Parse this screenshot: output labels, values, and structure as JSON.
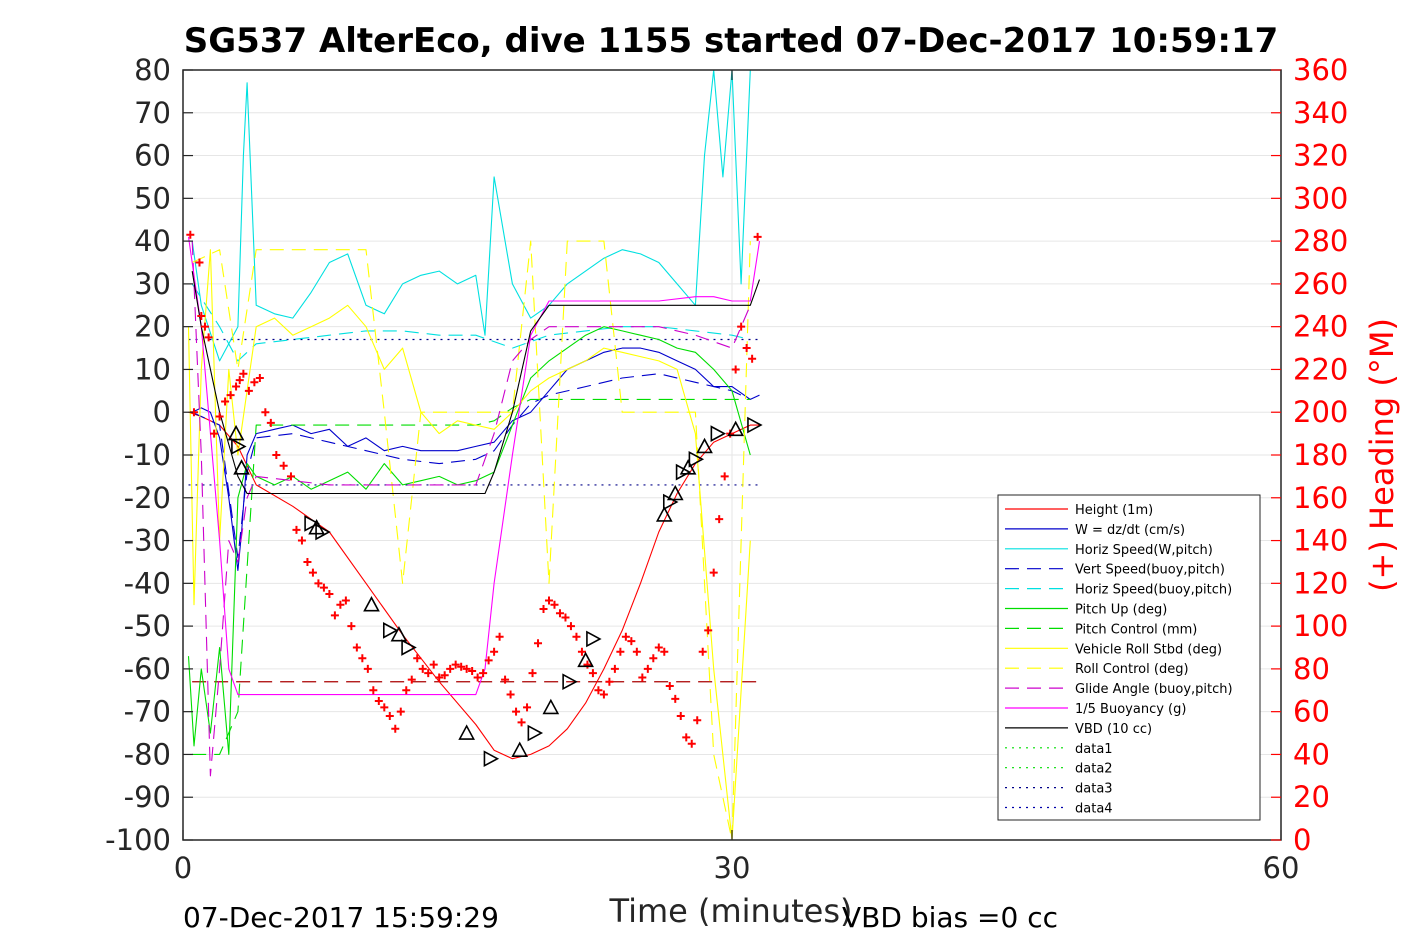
{
  "chart_data": {
    "type": "line",
    "title": "SG537 AlterEco, dive 1155 started 07-Dec-2017 10:59:17",
    "xlabel": "Time (minutes)",
    "ylabel_right": "(+) Heading (°M)",
    "xlim": [
      0,
      60
    ],
    "ylim": [
      -100,
      80
    ],
    "ylim_right": [
      0,
      360
    ],
    "xticks": [
      "0",
      "30",
      "60"
    ],
    "yticks": [
      "80",
      "70",
      "60",
      "50",
      "40",
      "30",
      "20",
      "10",
      "0",
      "-10",
      "-20",
      "-30",
      "-40",
      "-50",
      "-60",
      "-70",
      "-80",
      "-90",
      "-100"
    ],
    "yticks_right": [
      "360",
      "340",
      "320",
      "300",
      "280",
      "260",
      "240",
      "220",
      "200",
      "180",
      "160",
      "140",
      "120",
      "100",
      "80",
      "60",
      "40",
      "20",
      "0"
    ],
    "grid": true,
    "legend_position": "bottom-right",
    "footer_left": "07-Dec-2017 15:59:29",
    "footer_right": "VBD bias =0 cc",
    "series": [
      {
        "name": "Height (1m)",
        "color": "#ff0000",
        "style": "solid",
        "x": [
          0.3,
          1,
          2,
          3,
          4,
          6,
          7,
          8,
          10,
          12,
          14,
          16,
          17,
          18,
          19,
          20,
          21,
          22,
          23,
          24,
          25,
          26,
          27,
          28,
          29,
          30,
          31,
          31.5
        ],
        "y": [
          0,
          -1,
          -3,
          -8,
          -17,
          -22,
          -25,
          -28,
          -40,
          -52,
          -63,
          -73,
          -79,
          -81,
          -80,
          -78,
          -74,
          -68,
          -60,
          -51,
          -40,
          -28,
          -19,
          -12,
          -7,
          -5,
          -3,
          -3
        ]
      },
      {
        "name": "W = dz/dt (cm/s)",
        "color": "#0000cc",
        "style": "solid",
        "x": [
          0.5,
          1,
          1.5,
          2,
          2.5,
          3,
          3.2,
          3.5,
          4,
          5,
          6,
          7,
          8,
          9,
          10,
          11,
          12,
          13,
          14,
          15,
          16,
          17,
          18,
          19,
          20,
          21,
          22,
          23,
          24,
          25,
          26,
          27,
          28,
          29,
          30,
          31,
          31.5
        ],
        "y": [
          0,
          1,
          0,
          -6,
          -20,
          -37,
          -28,
          -10,
          -5,
          -4,
          -3,
          -5,
          -4,
          -8,
          -6,
          -9,
          -8,
          -9,
          -9,
          -9,
          -8,
          -7,
          -2,
          0,
          5,
          10,
          12,
          14,
          15,
          15,
          14,
          12,
          10,
          6,
          6,
          3,
          4
        ]
      },
      {
        "name": "Horiz Speed(W,pitch)",
        "color": "#00e0e0",
        "style": "solid",
        "x": [
          0.5,
          1,
          2,
          3,
          3.3,
          3.5,
          4,
          5,
          6,
          7,
          8,
          9,
          10,
          11,
          12,
          13,
          14,
          15,
          16,
          16.5,
          17,
          18,
          19,
          20,
          21,
          22,
          23,
          24,
          25,
          26,
          27,
          28,
          28.5,
          29,
          29.5,
          30,
          30.5,
          31
        ],
        "y": [
          40,
          25,
          12,
          20,
          60,
          77,
          25,
          23,
          22,
          28,
          35,
          37,
          25,
          23,
          30,
          32,
          33,
          30,
          32,
          18,
          55,
          30,
          22,
          25,
          30,
          33,
          36,
          38,
          37,
          35,
          30,
          25,
          60,
          80,
          55,
          80,
          30,
          80
        ]
      },
      {
        "name": "Vert Speed(buoy,pitch)",
        "color": "#0000cc",
        "style": "dashed",
        "x": [
          0.5,
          2,
          3,
          3.5,
          4,
          6,
          8,
          10,
          12,
          14,
          16,
          17,
          18,
          19,
          20,
          22,
          24,
          26,
          28,
          30,
          31
        ],
        "y": [
          0,
          -3,
          -34,
          -14,
          -6,
          -5,
          -7,
          -9,
          -11,
          -12,
          -11,
          -9,
          -3,
          2,
          4,
          6,
          8,
          9,
          7,
          5,
          3
        ]
      },
      {
        "name": "Horiz Speed(buoy,pitch)",
        "color": "#00e0e0",
        "style": "dashed",
        "x": [
          0.5,
          2,
          3,
          4,
          6,
          8,
          10,
          12,
          14,
          16,
          18,
          20,
          22,
          24,
          26,
          28,
          30,
          31
        ],
        "y": [
          30,
          20,
          12,
          16,
          17,
          18,
          19,
          19,
          18,
          18,
          15,
          18,
          19,
          20,
          20,
          19,
          18,
          17
        ]
      },
      {
        "name": "Pitch Up (deg)",
        "color": "#00dd00",
        "style": "solid",
        "x": [
          0.3,
          0.6,
          1,
          1.5,
          2,
          2.5,
          3,
          3.5,
          4,
          5,
          6,
          7,
          8,
          9,
          10,
          11,
          12,
          13,
          14,
          15,
          16,
          17,
          18,
          19,
          20,
          21,
          22,
          23,
          24,
          25,
          26,
          27,
          28,
          29,
          30,
          31
        ],
        "y": [
          -57,
          -78,
          -60,
          -75,
          -55,
          -80,
          -20,
          -12,
          -15,
          -17,
          -15,
          -18,
          -16,
          -14,
          -18,
          -12,
          -17,
          -16,
          -15,
          -17,
          -16,
          -14,
          -3,
          8,
          12,
          15,
          18,
          20,
          19,
          18,
          17,
          15,
          14,
          10,
          5,
          -10
        ]
      },
      {
        "name": "Pitch Control (mm)",
        "color": "#00dd00",
        "style": "dashed",
        "x": [
          0.5,
          2,
          3,
          4,
          16,
          17,
          18,
          19,
          20,
          31
        ],
        "y": [
          -80,
          -80,
          -70,
          -3,
          -3,
          -2,
          1,
          3,
          3,
          3
        ]
      },
      {
        "name": "Vehicle Roll Stbd (deg)",
        "color": "#ffff00",
        "style": "solid",
        "x": [
          0.3,
          0.6,
          1,
          1.5,
          2,
          2.5,
          3,
          4,
          5,
          6,
          7,
          8,
          9,
          10,
          11,
          12,
          13,
          14,
          15,
          16,
          17,
          18,
          19,
          20,
          21,
          22,
          23,
          24,
          25,
          26,
          27,
          28,
          29,
          30,
          31
        ],
        "y": [
          20,
          -45,
          10,
          38,
          -30,
          10,
          -10,
          20,
          22,
          18,
          20,
          22,
          25,
          20,
          10,
          15,
          0,
          -5,
          -2,
          -3,
          -4,
          0,
          5,
          8,
          10,
          12,
          15,
          14,
          13,
          12,
          10,
          -5,
          -60,
          -100,
          -30
        ]
      },
      {
        "name": "Roll Control (deg)",
        "color": "#ffff00",
        "style": "dashed",
        "x": [
          0.5,
          2,
          3,
          4,
          6,
          8,
          10,
          11,
          12,
          13,
          14,
          15,
          16,
          17,
          18,
          19,
          20,
          21,
          22,
          23,
          24,
          25,
          26,
          27,
          28,
          29,
          30,
          31
        ],
        "y": [
          35,
          38,
          10,
          38,
          38,
          38,
          38,
          0,
          -40,
          0,
          0,
          0,
          0,
          0,
          0,
          40,
          -40,
          40,
          40,
          40,
          0,
          0,
          0,
          0,
          0,
          -80,
          -100,
          40
        ]
      },
      {
        "name": "Glide Angle (buoy,pitch)",
        "color": "#cc00cc",
        "style": "dashed",
        "x": [
          0.5,
          1,
          1.5,
          2,
          2.5,
          3,
          3.5,
          4,
          6,
          8,
          10,
          12,
          14,
          16,
          17,
          18,
          19,
          20,
          22,
          24,
          26,
          28,
          30,
          31
        ],
        "y": [
          40,
          -10,
          -85,
          -60,
          -30,
          -35,
          -20,
          -15,
          -16,
          -17,
          -17,
          -17,
          -17,
          -17,
          -5,
          12,
          17,
          20,
          20,
          20,
          20,
          18,
          15,
          25
        ]
      },
      {
        "name": "1/5 Buoyancy (g)",
        "color": "#ff00ff",
        "style": "solid",
        "x": [
          0.3,
          1,
          2,
          2.5,
          3,
          3.5,
          4,
          6,
          8,
          10,
          12,
          14,
          15,
          16,
          16.5,
          17,
          18,
          19,
          20,
          22,
          24,
          26,
          28,
          29,
          30,
          31,
          31.5
        ],
        "y": [
          41,
          20,
          -30,
          -60,
          -66,
          -66,
          -66,
          -66,
          -66,
          -66,
          -66,
          -66,
          -66,
          -66,
          -60,
          -40,
          -10,
          18,
          26,
          26,
          26,
          26,
          27,
          27,
          26,
          26,
          40
        ]
      },
      {
        "name": "VBD (10 cc)",
        "color": "#000000",
        "style": "solid",
        "x": [
          0.5,
          1,
          2,
          3,
          3.5,
          4,
          6,
          8,
          10,
          12,
          14,
          15,
          16,
          16.5,
          17,
          18,
          19,
          20,
          22,
          24,
          26,
          28,
          30,
          31,
          31.5
        ],
        "y": [
          33,
          20,
          0,
          -15,
          -19,
          -19,
          -19,
          -19,
          -19,
          -19,
          -19,
          -19,
          -19,
          -19,
          -14,
          0,
          19,
          25,
          25,
          25,
          25,
          25,
          25,
          25,
          31
        ]
      },
      {
        "name": "data1",
        "color": "#00dd00",
        "style": "dotted",
        "x": [],
        "y": []
      },
      {
        "name": "data2",
        "color": "#00dd00",
        "style": "dotted",
        "x": [],
        "y": []
      },
      {
        "name": "data3",
        "color": "#000088",
        "style": "dotted",
        "x": [],
        "y": []
      },
      {
        "name": "data4",
        "color": "#0000aa",
        "style": "dotted",
        "x": [],
        "y": []
      }
    ],
    "reference_lines": [
      {
        "y": 17,
        "color": "#000088",
        "style": "dotted",
        "x": [
          0.3,
          31.5
        ]
      },
      {
        "y": -17,
        "color": "#000088",
        "style": "dotted",
        "x": [
          0.3,
          31.5
        ]
      },
      {
        "y": -63,
        "color": "#aa0000",
        "style": "dashed",
        "x": [
          0.5,
          31.5
        ]
      }
    ],
    "heading_points": {
      "axis": "right",
      "color": "#ff0000",
      "x": [
        0.4,
        0.6,
        0.9,
        1.0,
        1.2,
        1.4,
        1.7,
        2.0,
        2.3,
        2.6,
        2.9,
        3.1,
        3.3,
        3.6,
        3.9,
        4.2,
        4.5,
        4.8,
        5.1,
        5.5,
        5.9,
        6.2,
        6.5,
        6.8,
        7.1,
        7.4,
        7.7,
        8.0,
        8.3,
        8.6,
        8.9,
        9.2,
        9.5,
        9.8,
        10.1,
        10.4,
        10.7,
        11.0,
        11.3,
        11.6,
        11.9,
        12.2,
        12.5,
        12.8,
        13.1,
        13.4,
        13.7,
        14.0,
        14.3,
        14.6,
        14.9,
        15.2,
        15.5,
        15.8,
        16.1,
        16.4,
        16.7,
        17.0,
        17.3,
        17.6,
        17.9,
        18.2,
        18.5,
        18.8,
        19.1,
        19.4,
        19.7,
        20.0,
        20.3,
        20.6,
        20.9,
        21.2,
        21.5,
        21.8,
        22.1,
        22.4,
        22.7,
        23.0,
        23.3,
        23.6,
        23.9,
        24.2,
        24.5,
        24.8,
        25.1,
        25.4,
        25.7,
        26.0,
        26.3,
        26.6,
        26.9,
        27.2,
        27.5,
        27.8,
        28.1,
        28.4,
        28.7,
        29.0,
        29.3,
        29.6,
        29.9,
        30.2,
        30.5,
        30.8,
        31.1,
        31.4
      ],
      "y": [
        283,
        200,
        270,
        245,
        240,
        235,
        190,
        198,
        205,
        208,
        212,
        215,
        218,
        210,
        214,
        216,
        200,
        195,
        180,
        175,
        170,
        145,
        140,
        130,
        125,
        120,
        118,
        115,
        105,
        110,
        112,
        100,
        90,
        85,
        80,
        70,
        65,
        62,
        58,
        52,
        60,
        70,
        75,
        85,
        80,
        78,
        82,
        76,
        77,
        80,
        82,
        81,
        80,
        79,
        76,
        78,
        84,
        88,
        95,
        75,
        68,
        60,
        55,
        62,
        78,
        92,
        108,
        112,
        110,
        106,
        104,
        100,
        95,
        88,
        82,
        78,
        70,
        68,
        74,
        80,
        88,
        95,
        93,
        88,
        76,
        80,
        85,
        90,
        88,
        72,
        66,
        58,
        48,
        45,
        56,
        88,
        98,
        125,
        150,
        170,
        190,
        220,
        240,
        230,
        225,
        282
      ]
    },
    "vbd_triangles": {
      "x": [
        2.9,
        3.0,
        3.2,
        7.0,
        7.3,
        7.6,
        10.3,
        11.3,
        11.8,
        12.3,
        15.5,
        16.8,
        18.4,
        19.2,
        20.1,
        21.1,
        22.0,
        22.4,
        26.3,
        26.6,
        26.9,
        27.3,
        27.6,
        28.0,
        28.5,
        29.2,
        30.2,
        31.2
      ],
      "y": [
        -5,
        -8,
        -13,
        -26,
        -27,
        -28,
        -45,
        -51,
        -52,
        -55,
        -75,
        -81,
        -79,
        -75,
        -69,
        -63,
        -58,
        -53,
        -24,
        -21,
        -19,
        -14,
        -13,
        -11,
        -8,
        -5,
        -4,
        -3
      ]
    }
  }
}
